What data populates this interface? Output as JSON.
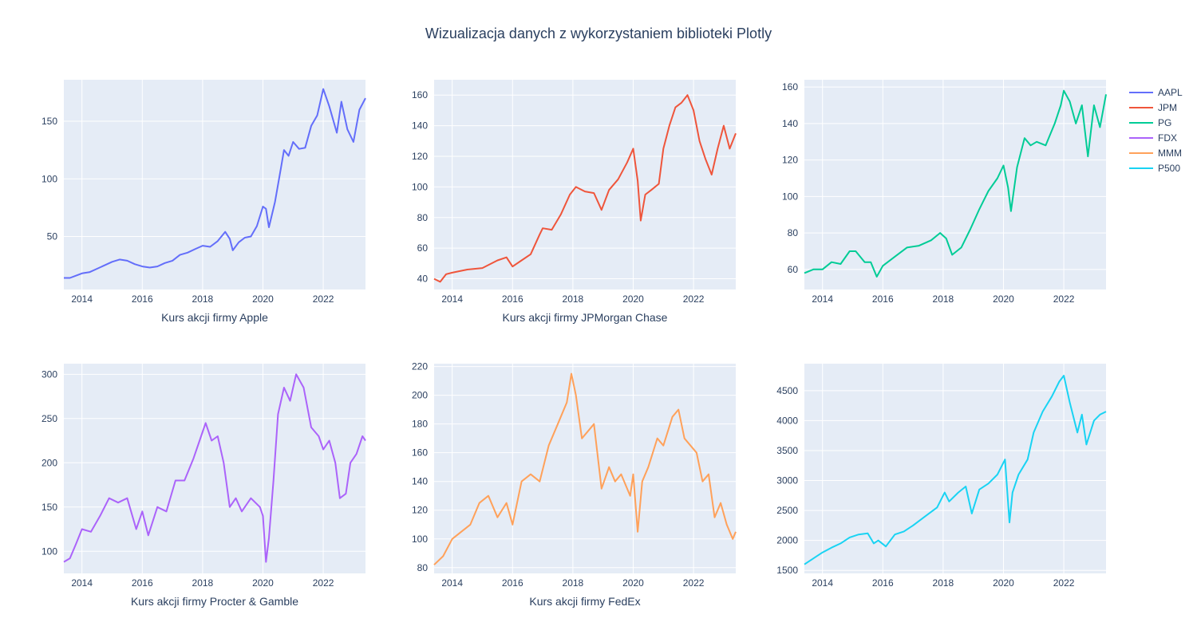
{
  "figure": {
    "title": "Wizualizacja danych z wykorzystaniem biblioteki Plotly",
    "colors": {
      "plot_bg": "#e5ecf6",
      "grid": "#ffffff",
      "text": "#2a3f5f",
      "tick_text": "#2a3f5f"
    }
  },
  "legend": {
    "placement": "top-right",
    "items": [
      {
        "name": "AAPL",
        "color": "#636efa"
      },
      {
        "name": "JPM",
        "color": "#ef553b"
      },
      {
        "name": "PG",
        "color": "#00cc96"
      },
      {
        "name": "FDX",
        "color": "#ab63fa"
      },
      {
        "name": "MMM",
        "color": "#ffa15a"
      },
      {
        "name": "P500",
        "color": "#19d3f3"
      }
    ]
  },
  "chart_data": [
    {
      "type": "line",
      "series_name": "AAPL",
      "color": "#636efa",
      "xlabel": "Kurs akcji firmy Apple",
      "ylabel": "",
      "x_range": [
        2013.4,
        2023.4
      ],
      "ylim": [
        4,
        186
      ],
      "x_ticks": [
        "2014",
        "2016",
        "2018",
        "2020",
        "2022"
      ],
      "y_ticks": [
        50,
        100,
        150
      ],
      "grid": true,
      "x": [
        2013.4,
        2013.6,
        2013.8,
        2014.0,
        2014.25,
        2014.5,
        2014.75,
        2015.0,
        2015.25,
        2015.5,
        2015.75,
        2016.0,
        2016.25,
        2016.5,
        2016.75,
        2017.0,
        2017.25,
        2017.5,
        2017.75,
        2018.0,
        2018.25,
        2018.5,
        2018.75,
        2018.9,
        2019.0,
        2019.2,
        2019.4,
        2019.6,
        2019.8,
        2020.0,
        2020.1,
        2020.2,
        2020.4,
        2020.6,
        2020.7,
        2020.85,
        2021.0,
        2021.2,
        2021.4,
        2021.6,
        2021.8,
        2022.0,
        2022.2,
        2022.45,
        2022.6,
        2022.8,
        2023.0,
        2023.2,
        2023.4
      ],
      "y": [
        14,
        14,
        16,
        18,
        19,
        22,
        25,
        28,
        30,
        29,
        26,
        24,
        23,
        24,
        27,
        29,
        34,
        36,
        39,
        42,
        41,
        46,
        54,
        48,
        38,
        45,
        49,
        50,
        59,
        76,
        74,
        58,
        80,
        110,
        125,
        120,
        132,
        126,
        127,
        146,
        155,
        178,
        163,
        140,
        167,
        143,
        132,
        160,
        170
      ]
    },
    {
      "type": "line",
      "series_name": "JPM",
      "color": "#ef553b",
      "xlabel": "Kurs akcji firmy JPMorgan Chase",
      "ylabel": "",
      "x_range": [
        2013.4,
        2023.4
      ],
      "ylim": [
        33,
        170
      ],
      "x_ticks": [
        "2014",
        "2016",
        "2018",
        "2020",
        "2022"
      ],
      "y_ticks": [
        40,
        60,
        80,
        100,
        120,
        140,
        160
      ],
      "grid": true,
      "x": [
        2013.4,
        2013.6,
        2013.8,
        2014.0,
        2014.5,
        2015.0,
        2015.5,
        2015.8,
        2016.0,
        2016.3,
        2016.6,
        2016.9,
        2017.0,
        2017.3,
        2017.6,
        2017.9,
        2018.1,
        2018.4,
        2018.7,
        2018.95,
        2019.2,
        2019.5,
        2019.8,
        2020.0,
        2020.15,
        2020.25,
        2020.4,
        2020.6,
        2020.85,
        2021.0,
        2021.2,
        2021.4,
        2021.6,
        2021.8,
        2022.0,
        2022.2,
        2022.4,
        2022.6,
        2022.8,
        2023.0,
        2023.2,
        2023.4
      ],
      "y": [
        40,
        38,
        43,
        44,
        46,
        47,
        52,
        54,
        48,
        52,
        56,
        69,
        73,
        72,
        82,
        95,
        100,
        97,
        96,
        85,
        98,
        105,
        116,
        125,
        104,
        78,
        95,
        98,
        102,
        125,
        140,
        152,
        155,
        160,
        150,
        130,
        118,
        108,
        125,
        140,
        125,
        135
      ]
    },
    {
      "type": "line",
      "series_name": "PG",
      "color": "#00cc96",
      "xlabel": "",
      "ylabel": "",
      "x_range": [
        2013.4,
        2023.4
      ],
      "ylim": [
        49,
        164
      ],
      "x_ticks": [
        "2014",
        "2016",
        "2018",
        "2020",
        "2022"
      ],
      "y_ticks": [
        60,
        80,
        100,
        120,
        140,
        160
      ],
      "grid": true,
      "x": [
        2013.4,
        2013.7,
        2014.0,
        2014.3,
        2014.6,
        2014.9,
        2015.1,
        2015.4,
        2015.6,
        2015.8,
        2016.0,
        2016.4,
        2016.8,
        2017.2,
        2017.6,
        2017.9,
        2018.1,
        2018.3,
        2018.6,
        2018.9,
        2019.2,
        2019.5,
        2019.8,
        2020.0,
        2020.15,
        2020.25,
        2020.45,
        2020.7,
        2020.9,
        2021.1,
        2021.4,
        2021.7,
        2021.9,
        2022.0,
        2022.2,
        2022.4,
        2022.6,
        2022.8,
        2023.0,
        2023.2,
        2023.4
      ],
      "y": [
        58,
        60,
        60,
        64,
        63,
        70,
        70,
        64,
        64,
        56,
        62,
        67,
        72,
        73,
        76,
        80,
        77,
        68,
        72,
        82,
        93,
        103,
        110,
        117,
        105,
        92,
        116,
        132,
        128,
        130,
        128,
        140,
        150,
        158,
        152,
        140,
        150,
        122,
        150,
        138,
        156
      ]
    },
    {
      "type": "line",
      "series_name": "FDX",
      "color": "#ab63fa",
      "xlabel": "Kurs akcji firmy Procter & Gamble",
      "ylabel": "",
      "x_range": [
        2013.4,
        2023.4
      ],
      "ylim": [
        75,
        312
      ],
      "x_ticks": [
        "2014",
        "2016",
        "2018",
        "2020",
        "2022"
      ],
      "y_ticks": [
        100,
        150,
        200,
        250,
        300
      ],
      "grid": true,
      "x": [
        2013.4,
        2013.6,
        2013.8,
        2014.0,
        2014.3,
        2014.6,
        2014.9,
        2015.2,
        2015.5,
        2015.8,
        2016.0,
        2016.2,
        2016.5,
        2016.8,
        2017.1,
        2017.4,
        2017.7,
        2017.95,
        2018.1,
        2018.3,
        2018.5,
        2018.7,
        2018.9,
        2019.1,
        2019.3,
        2019.6,
        2019.9,
        2020.0,
        2020.1,
        2020.2,
        2020.35,
        2020.5,
        2020.7,
        2020.9,
        2021.1,
        2021.35,
        2021.6,
        2021.85,
        2022.0,
        2022.2,
        2022.4,
        2022.55,
        2022.75,
        2022.9,
        2023.1,
        2023.3,
        2023.4
      ],
      "y": [
        88,
        92,
        108,
        125,
        122,
        140,
        160,
        155,
        160,
        125,
        145,
        118,
        150,
        145,
        180,
        180,
        205,
        230,
        245,
        225,
        230,
        200,
        150,
        160,
        145,
        160,
        150,
        140,
        88,
        115,
        180,
        255,
        285,
        270,
        300,
        285,
        240,
        230,
        215,
        225,
        200,
        160,
        165,
        200,
        210,
        230,
        225
      ]
    },
    {
      "type": "line",
      "series_name": "MMM",
      "color": "#ffa15a",
      "xlabel": "Kurs akcji firmy FedEx",
      "ylabel": "",
      "x_range": [
        2013.4,
        2023.4
      ],
      "ylim": [
        76,
        222
      ],
      "x_ticks": [
        "2014",
        "2016",
        "2018",
        "2020",
        "2022"
      ],
      "y_ticks": [
        80,
        100,
        120,
        140,
        160,
        180,
        200,
        220
      ],
      "grid": true,
      "x": [
        2013.4,
        2013.7,
        2014.0,
        2014.3,
        2014.6,
        2014.9,
        2015.2,
        2015.5,
        2015.8,
        2016.0,
        2016.3,
        2016.6,
        2016.9,
        2017.2,
        2017.5,
        2017.8,
        2017.95,
        2018.1,
        2018.3,
        2018.5,
        2018.7,
        2018.95,
        2019.2,
        2019.4,
        2019.6,
        2019.9,
        2020.0,
        2020.15,
        2020.3,
        2020.5,
        2020.8,
        2021.0,
        2021.3,
        2021.5,
        2021.7,
        2021.9,
        2022.1,
        2022.3,
        2022.5,
        2022.7,
        2022.9,
        2023.1,
        2023.3,
        2023.4
      ],
      "y": [
        82,
        88,
        100,
        105,
        110,
        125,
        130,
        115,
        125,
        110,
        140,
        145,
        140,
        165,
        180,
        195,
        215,
        200,
        170,
        175,
        180,
        135,
        150,
        140,
        145,
        130,
        145,
        105,
        140,
        150,
        170,
        165,
        185,
        190,
        170,
        165,
        160,
        140,
        145,
        115,
        125,
        110,
        100,
        105
      ]
    },
    {
      "type": "line",
      "series_name": "P500",
      "color": "#19d3f3",
      "xlabel": "",
      "ylabel": "",
      "x_range": [
        2013.4,
        2023.4
      ],
      "ylim": [
        1450,
        4950
      ],
      "x_ticks": [
        "2014",
        "2016",
        "2018",
        "2020",
        "2022"
      ],
      "y_ticks": [
        1500,
        2000,
        2500,
        3000,
        3500,
        4000,
        4500
      ],
      "grid": true,
      "x": [
        2013.4,
        2013.7,
        2014.0,
        2014.3,
        2014.6,
        2014.9,
        2015.2,
        2015.5,
        2015.7,
        2015.85,
        2016.1,
        2016.4,
        2016.7,
        2017.0,
        2017.4,
        2017.8,
        2018.05,
        2018.2,
        2018.5,
        2018.75,
        2018.95,
        2019.2,
        2019.5,
        2019.8,
        2020.05,
        2020.2,
        2020.3,
        2020.5,
        2020.8,
        2021.0,
        2021.3,
        2021.6,
        2021.85,
        2022.0,
        2022.2,
        2022.45,
        2022.6,
        2022.75,
        2023.0,
        2023.2,
        2023.4
      ],
      "y": [
        1600,
        1700,
        1800,
        1880,
        1950,
        2050,
        2100,
        2120,
        1950,
        2000,
        1900,
        2100,
        2150,
        2250,
        2400,
        2550,
        2800,
        2650,
        2800,
        2900,
        2450,
        2850,
        2950,
        3100,
        3350,
        2300,
        2800,
        3100,
        3350,
        3800,
        4150,
        4400,
        4650,
        4750,
        4300,
        3800,
        4100,
        3600,
        4000,
        4100,
        4150
      ]
    }
  ]
}
